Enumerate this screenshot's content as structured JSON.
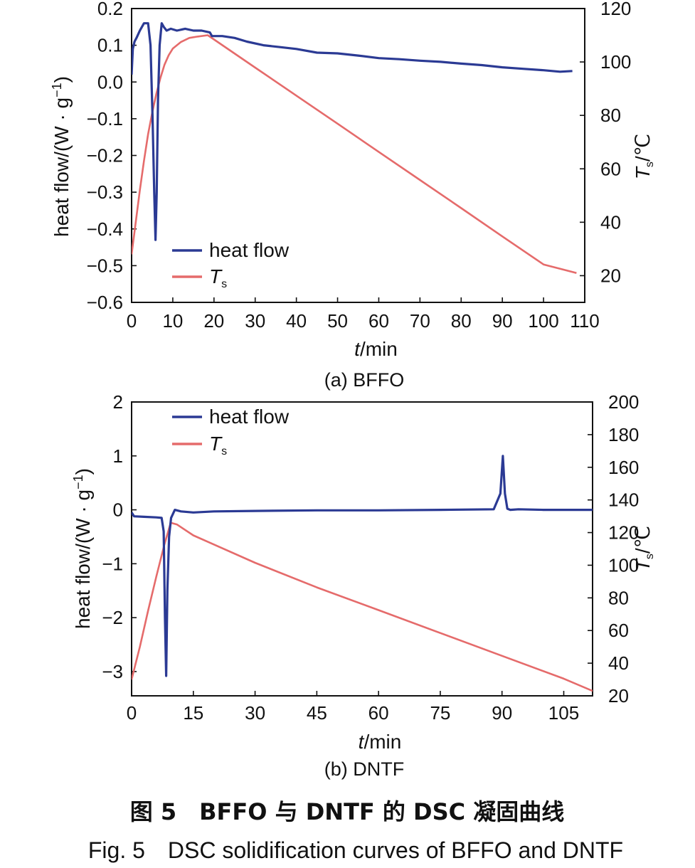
{
  "chart_data": [
    {
      "type": "line",
      "caption": "(a) BFFO",
      "xlabel_var": "t",
      "xlabel_unit": "/min",
      "ylabel_left": "heat flow/(W · g",
      "ylabel_left_sup": "−1",
      "ylabel_left_close": ")",
      "ylabel_right_var": "T",
      "ylabel_right_sub": "s",
      "ylabel_right_unit": "/℃",
      "xlim": [
        0,
        110
      ],
      "ylim_left": [
        -0.6,
        0.2
      ],
      "ylim_right": [
        10,
        120
      ],
      "x_ticks": [
        "0",
        "10",
        "20",
        "30",
        "40",
        "50",
        "60",
        "70",
        "80",
        "90",
        "100",
        "110"
      ],
      "y_left_ticks": [
        "0.2",
        "0.1",
        "0.0",
        "−0.1",
        "−0.2",
        "−0.3",
        "−0.4",
        "−0.5",
        "−0.6"
      ],
      "y_right_ticks": [
        "120",
        "100",
        "80",
        "60",
        "40",
        "20"
      ],
      "legend": [
        {
          "label": "heat flow",
          "color": "#2b3a94"
        },
        {
          "label": "T",
          "sub": "s",
          "color": "#e56b6b"
        }
      ],
      "series": [
        {
          "name": "heat flow",
          "axis": "left",
          "color": "#2b3a94",
          "x": [
            0,
            0.3,
            0.7,
            1.2,
            2,
            3,
            4,
            4.6,
            5.1,
            5.5,
            5.8,
            6.1,
            6.4,
            6.8,
            7.3,
            7.8,
            8.5,
            9.5,
            11,
            13,
            15,
            17,
            19,
            19.5,
            22,
            25,
            28,
            32,
            36,
            40,
            45,
            50,
            55,
            60,
            65,
            70,
            75,
            80,
            85,
            90,
            95,
            100,
            104,
            107
          ],
          "y": [
            0.02,
            0.09,
            0.11,
            0.12,
            0.14,
            0.16,
            0.16,
            0.1,
            -0.1,
            -0.3,
            -0.43,
            -0.3,
            -0.05,
            0.1,
            0.16,
            0.15,
            0.14,
            0.145,
            0.14,
            0.145,
            0.14,
            0.14,
            0.135,
            0.125,
            0.125,
            0.12,
            0.11,
            0.1,
            0.095,
            0.09,
            0.08,
            0.078,
            0.072,
            0.065,
            0.062,
            0.058,
            0.055,
            0.05,
            0.046,
            0.04,
            0.036,
            0.032,
            0.028,
            0.03
          ]
        },
        {
          "name": "T",
          "axis": "right",
          "color": "#e56b6b",
          "x": [
            0,
            1,
            2,
            3,
            4,
            5,
            6,
            7,
            8,
            9,
            10,
            12,
            14,
            16,
            18.5,
            30,
            40,
            50,
            60,
            70,
            80,
            90,
            100,
            108
          ],
          "y": [
            28,
            40,
            52,
            63,
            73,
            81,
            88,
            94,
            99,
            102.5,
            105,
            107.5,
            109,
            109.5,
            110,
            97.9,
            87.4,
            76.9,
            66.3,
            55.8,
            45.3,
            34.7,
            24.2,
            21
          ]
        }
      ]
    },
    {
      "type": "line",
      "caption": "(b) DNTF",
      "xlabel_var": "t",
      "xlabel_unit": "/min",
      "ylabel_left": "heat flow/(W · g",
      "ylabel_left_sup": "−1",
      "ylabel_left_close": ")",
      "ylabel_right_var": "T",
      "ylabel_right_sub": "s",
      "ylabel_right_unit": "/℃",
      "xlim": [
        0,
        112
      ],
      "ylim_left": [
        -3.45,
        2
      ],
      "ylim_right": [
        20,
        200
      ],
      "x_ticks": [
        "0",
        "15",
        "30",
        "45",
        "60",
        "75",
        "90",
        "105"
      ],
      "y_left_ticks": [
        "2",
        "1",
        "0",
        "−1",
        "−2",
        "−3"
      ],
      "y_right_ticks": [
        "200",
        "180",
        "160",
        "140",
        "120",
        "100",
        "80",
        "60",
        "40",
        "20"
      ],
      "legend": [
        {
          "label": "heat flow",
          "color": "#2b3a94"
        },
        {
          "label": "T",
          "sub": "s",
          "color": "#e56b6b"
        }
      ],
      "series": [
        {
          "name": "heat flow",
          "axis": "left",
          "color": "#2b3a94",
          "x": [
            0,
            0.6,
            3,
            6,
            7.3,
            7.8,
            8.1,
            8.4,
            8.7,
            9.1,
            9.6,
            10.5,
            12,
            15,
            20,
            30,
            45,
            60,
            75,
            88,
            89.6,
            90.2,
            90.7,
            91.3,
            92,
            94,
            100,
            112
          ],
          "y": [
            -0.05,
            -0.12,
            -0.13,
            -0.14,
            -0.15,
            -0.4,
            -2.0,
            -3.08,
            -1.5,
            -0.5,
            -0.15,
            0.0,
            -0.03,
            -0.05,
            -0.03,
            -0.02,
            -0.01,
            -0.01,
            0.0,
            0.01,
            0.3,
            1.0,
            0.3,
            0.02,
            0.0,
            0.01,
            0.0,
            0.0
          ]
        },
        {
          "name": "T",
          "axis": "right",
          "color": "#e56b6b",
          "x": [
            0,
            2,
            4,
            6,
            8,
            9.5,
            11,
            15,
            30,
            45,
            60,
            75,
            90,
            105,
            112
          ],
          "y": [
            30,
            50,
            72,
            93,
            113,
            126,
            125,
            118.3,
            101.5,
            86.4,
            72.5,
            58.5,
            44.5,
            30.5,
            23
          ]
        }
      ]
    }
  ],
  "caption_cn": "图 5　BFFO 与 DNTF 的 DSC 凝固曲线",
  "caption_en": "Fig. 5　DSC solidification curves of BFFO and DNTF"
}
